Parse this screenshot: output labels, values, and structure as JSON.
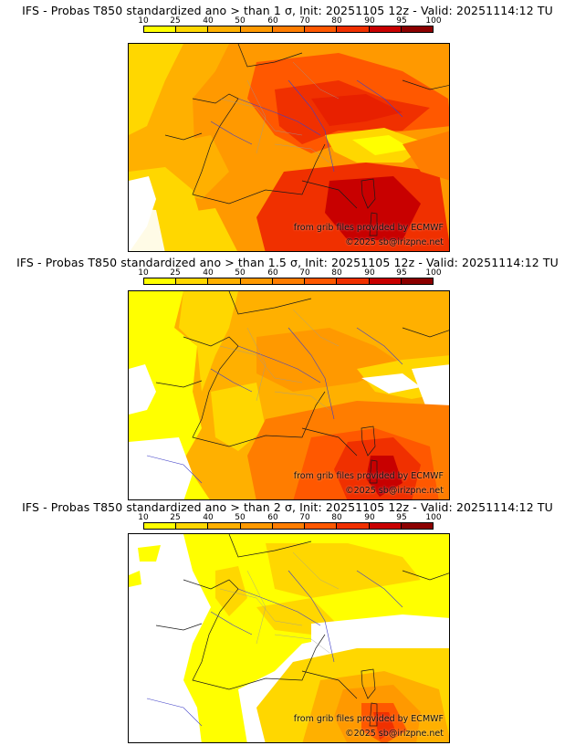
{
  "colorbar": {
    "levels": [
      "10",
      "25",
      "40",
      "50",
      "60",
      "70",
      "80",
      "90",
      "95",
      "100"
    ],
    "colors": [
      "#ffff00",
      "#ffd700",
      "#ffb000",
      "#ff9900",
      "#ff7d00",
      "#ff5800",
      "#f03000",
      "#c80000",
      "#8c0000"
    ]
  },
  "panels": [
    {
      "title": "IFS - Probas T850  standardized ano > than 1 σ, Init: 20251105 12z - Valid: 20251114:12 TU",
      "threshold_sigma": 1,
      "credit_source": "from grib files provided by ECMWF",
      "credit_copyright": "©2025 sb@irizpne.net"
    },
    {
      "title": "IFS - Probas T850  standardized ano > than 1.5 σ, Init: 20251105 12z - Valid: 20251114:12 TU",
      "threshold_sigma": 1.5,
      "credit_source": "from grib files provided by ECMWF",
      "credit_copyright": "©2025 sb@irizpne.net"
    },
    {
      "title": "IFS - Probas T850  standardized ano > than 2 σ, Init: 20251105 12z - Valid: 20251114:12 TU",
      "threshold_sigma": 2,
      "credit_source": "from grib files provided by ECMWF",
      "credit_copyright": "©2025 sb@irizpne.net"
    }
  ]
}
